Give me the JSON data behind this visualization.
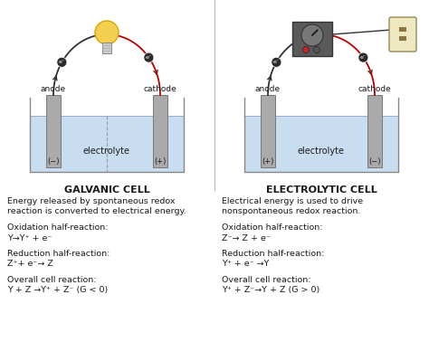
{
  "bg_color": "#ffffff",
  "water_color": "#c8ddf0",
  "electrode_color": "#aaaaaa",
  "title_left": "GALVANIC CELL",
  "title_right": "ELECTROLYTIC CELL",
  "left_desc1": "Energy released by spontaneous redox",
  "left_desc2": "reaction is converted to electrical energy.",
  "right_desc1": "Electrical energy is used to drive",
  "right_desc2": "nonspontaneous redox reaction.",
  "left_ox_label": "Oxidation half-reaction:",
  "left_ox_eq": "Y→Y⁺ + e⁻",
  "left_red_label": "Reduction half-reaction:",
  "left_red_eq": "Z⁺+ e⁻→ Z",
  "left_overall_label": "Overall cell reaction:",
  "left_overall_eq": "Y + Z →Y⁺ + Z⁻ (G < 0)",
  "right_ox_label": "Oxidation half-reaction:",
  "right_ox_eq": "Z⁻→ Z + e⁻",
  "right_red_label": "Reduction half-reaction:",
  "right_red_eq": "Y⁺ + e⁻ →Y",
  "right_overall_label": "Overall cell reaction:",
  "right_overall_eq": "Y⁺ + Z⁻→Y + Z (G > 0)",
  "anode_label": "anode",
  "cathode_label": "cathode",
  "electrolyte_label": "electrolyte",
  "left_anode_sign": "(−)",
  "left_cathode_sign": "(+)",
  "right_anode_sign": "(+)",
  "right_cathode_sign": "(−)",
  "text_color": "#1a1a1a",
  "arrow_color": "#222222",
  "red_wire_color": "#bb0000",
  "dark_wire_color": "#333333",
  "divider_color": "#bbbbbb",
  "electrode_edge": "#777777",
  "water_edge": "#99aacc"
}
